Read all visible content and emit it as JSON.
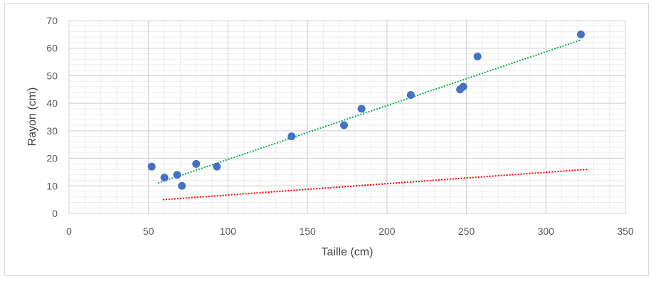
{
  "chart_data": {
    "type": "scatter",
    "title": "",
    "xlabel": "Taille (cm)",
    "ylabel": "Rayon (cm)",
    "xlim": [
      0,
      350
    ],
    "ylim": [
      0,
      70
    ],
    "xticks": [
      0,
      50,
      100,
      150,
      200,
      250,
      300,
      350
    ],
    "yticks": [
      0,
      10,
      20,
      30,
      40,
      50,
      60,
      70
    ],
    "major_grid": true,
    "minor_grid": true,
    "legend": "none",
    "points": {
      "color": "#4472c4",
      "x": [
        52,
        60,
        68,
        71,
        80,
        93,
        140,
        173,
        184,
        215,
        246,
        248,
        257,
        322
      ],
      "y": [
        17,
        13,
        14,
        10,
        18,
        17,
        28,
        32,
        38,
        43,
        45,
        46,
        57,
        65
      ]
    },
    "trendlines": [
      {
        "color": "#00b050",
        "style": "dotted",
        "x": [
          56,
          322
        ],
        "y": [
          11,
          63
        ]
      },
      {
        "color": "#ff0000",
        "style": "dotted",
        "x": [
          59,
          326
        ],
        "y": [
          5,
          16
        ]
      }
    ]
  }
}
